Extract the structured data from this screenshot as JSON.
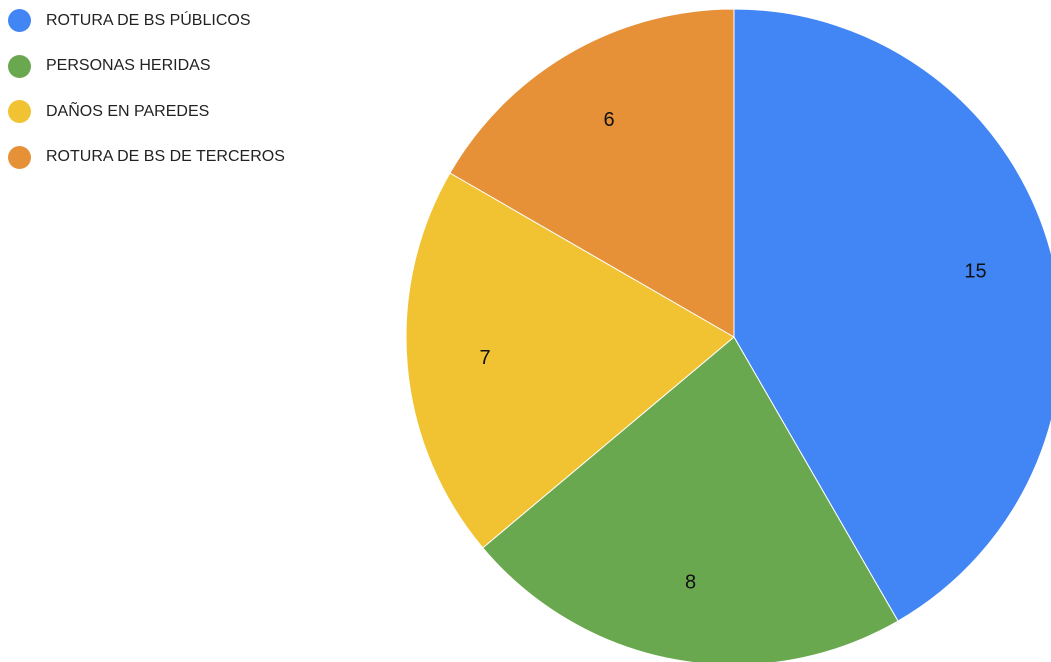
{
  "chart_data": {
    "type": "pie",
    "title": "",
    "legend_position": "top-left",
    "start_angle": "12 o'clock, clockwise",
    "categories": [
      "ROTURA DE BS PÚBLICOS",
      "PERSONAS HERIDAS",
      "DAÑOS EN PAREDES",
      "ROTURA DE BS DE TERCEROS"
    ],
    "values": [
      15,
      8,
      7,
      6
    ],
    "colors": [
      "#4285f4",
      "#6aa84f",
      "#f1c232",
      "#e69138"
    ]
  }
}
